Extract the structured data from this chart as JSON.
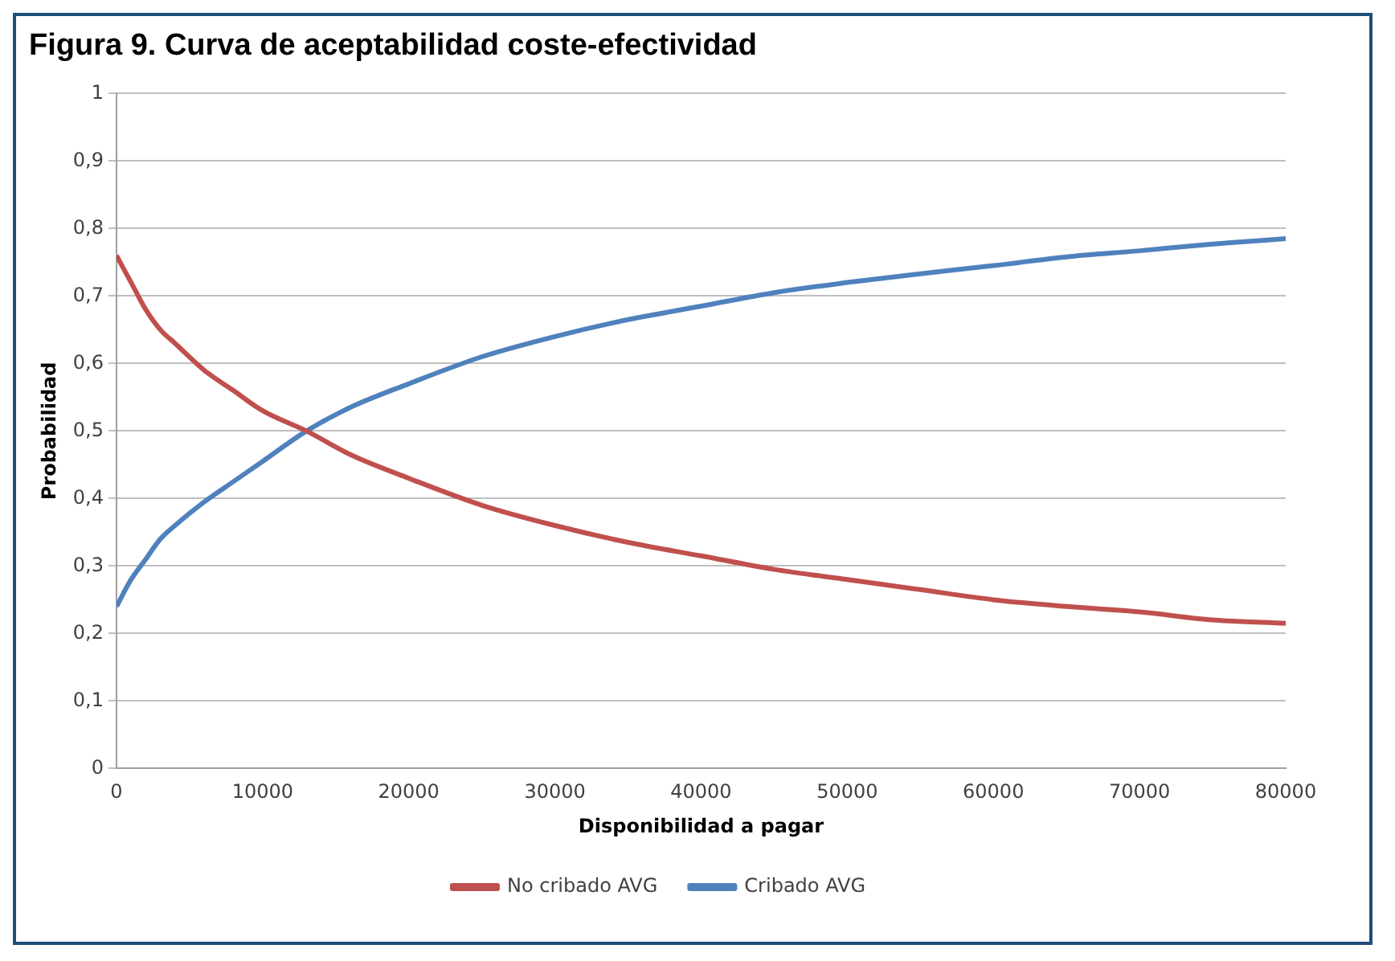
{
  "chart_data": {
    "type": "line",
    "title": "Figura 9. Curva de aceptabilidad coste-efectividad",
    "xlabel": "Disponibilidad a pagar",
    "ylabel": "Probabilidad",
    "x": [
      0,
      1000,
      2000,
      3000,
      4000,
      6000,
      8000,
      10000,
      13000,
      16000,
      20000,
      25000,
      30000,
      35000,
      40000,
      45000,
      50000,
      55000,
      60000,
      65000,
      70000,
      75000,
      80000
    ],
    "series": [
      {
        "name": "No cribado AVG",
        "color": "#c0504d",
        "values": [
          0.76,
          0.72,
          0.68,
          0.65,
          0.63,
          0.59,
          0.56,
          0.53,
          0.5,
          0.465,
          0.43,
          0.39,
          0.36,
          0.335,
          0.315,
          0.295,
          0.28,
          0.265,
          0.25,
          0.24,
          0.232,
          0.22,
          0.215
        ]
      },
      {
        "name": "Cribado AVG",
        "color": "#4f81bd",
        "values": [
          0.24,
          0.28,
          0.31,
          0.34,
          0.36,
          0.395,
          0.425,
          0.455,
          0.5,
          0.535,
          0.57,
          0.61,
          0.64,
          0.665,
          0.685,
          0.705,
          0.72,
          0.733,
          0.745,
          0.758,
          0.767,
          0.777,
          0.785
        ]
      }
    ],
    "xlim": [
      0,
      80000
    ],
    "xticks": [
      0,
      10000,
      20000,
      30000,
      40000,
      50000,
      60000,
      70000,
      80000
    ],
    "ylim": [
      0,
      1
    ],
    "yticks": [
      0,
      {
        "value": 0.1,
        "label": "0,1"
      },
      {
        "value": 0.2,
        "label": "0,2"
      },
      {
        "value": 0.3,
        "label": "0,3"
      },
      {
        "value": 0.4,
        "label": "0,4"
      },
      {
        "value": 0.5,
        "label": "0,5"
      },
      {
        "value": 0.6,
        "label": "0,6"
      },
      {
        "value": 0.7,
        "label": "0,7"
      },
      {
        "value": 0.8,
        "label": "0,8"
      },
      {
        "value": 0.9,
        "label": "0,9"
      },
      1
    ],
    "grid": "y",
    "legend": "bottom",
    "marker": "none",
    "line_style": "solid"
  }
}
